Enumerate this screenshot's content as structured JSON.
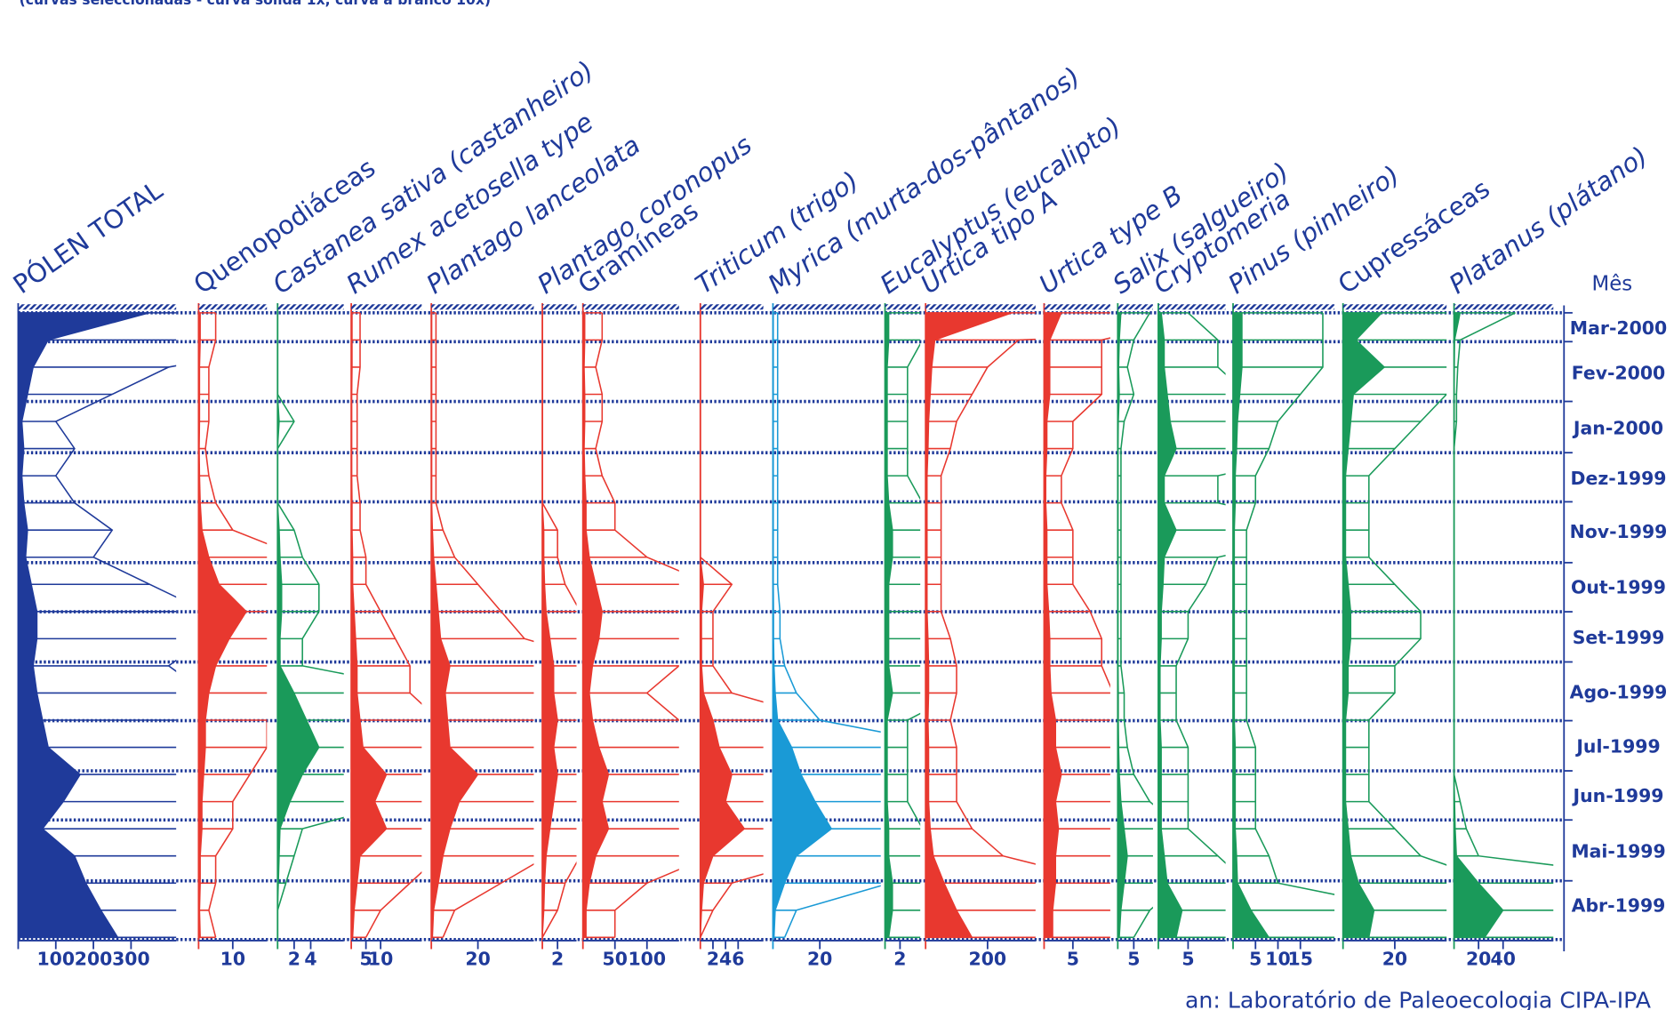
{
  "caption": "(curvas seleccionadas - curva sólida 1x, curva a branco 10x)",
  "footer": "an: Laboratório de Paleoecologia CIPA-IPA",
  "exaggeration": 10,
  "y_axis": {
    "title": "Mês",
    "categories": [
      "Mar-2000",
      "Fev-2000",
      "Jan-2000",
      "Dez-1999",
      "Nov-1999",
      "Out-1999",
      "Set-1999",
      "Ago-1999",
      "Jul-1999",
      "Jun-1999",
      "Mai-1999",
      "Abr-1999"
    ]
  },
  "chart_data": [
    {
      "type": "area",
      "title": "PÓLEN TOTAL",
      "italic": false,
      "color": "#1f3a9a",
      "xlim": [
        0,
        420
      ],
      "xticks": [
        100,
        200,
        300
      ],
      "values": [
        350,
        80,
        40,
        25,
        10,
        15,
        10,
        15,
        25,
        20,
        35,
        50,
        50,
        40,
        50,
        65,
        80,
        165,
        120,
        65,
        150,
        180,
        220,
        265
      ]
    },
    {
      "type": "area",
      "title": "Quenopodiáceas",
      "italic": false,
      "color": "#e8382f",
      "xlim": [
        0,
        20
      ],
      "xticks": [
        10
      ],
      "values": [
        0.5,
        0.5,
        0.3,
        0.3,
        0.3,
        0.2,
        0.3,
        0.5,
        1,
        3,
        6,
        14,
        9,
        5,
        3,
        2,
        2,
        1.5,
        1,
        1,
        0.5,
        0.5,
        0.3,
        0.5
      ]
    },
    {
      "type": "area",
      "title": "Castanea sativa (castanheiro)",
      "italic": true,
      "color": "#1a9a5a",
      "xlim": [
        0,
        8
      ],
      "xticks": [
        2,
        4
      ],
      "values": [
        0,
        0,
        0,
        0,
        0.2,
        0,
        0,
        0,
        0.2,
        0.3,
        0.5,
        0.5,
        0.3,
        0.3,
        2,
        3.5,
        5,
        3,
        1.5,
        0.3,
        0.2,
        0.1,
        0,
        0
      ]
    },
    {
      "type": "area",
      "title": "Rumex acetosella type",
      "italic": true,
      "color": "#e8382f",
      "xlim": [
        0,
        24
      ],
      "xticks": [
        5,
        10
      ],
      "values": [
        0.3,
        0.3,
        0.3,
        0.2,
        0.2,
        0.2,
        0.2,
        0.3,
        0.3,
        0.5,
        0.5,
        1,
        1.5,
        2,
        2,
        3,
        4,
        12,
        8,
        12,
        3,
        2,
        1,
        0.5
      ]
    },
    {
      "type": "area",
      "title": "Plantago lanceolata",
      "italic": true,
      "color": "#e8382f",
      "xlim": [
        0,
        44
      ],
      "xticks": [
        20
      ],
      "values": [
        0.2,
        0.2,
        0.2,
        0.2,
        0.2,
        0.2,
        0.2,
        0.2,
        0.5,
        1,
        2,
        3,
        4,
        8,
        6,
        7,
        8,
        20,
        12,
        8,
        5,
        3,
        1,
        0.5
      ]
    },
    {
      "type": "area",
      "title": "Plantago coronopus",
      "italic": true,
      "color": "#e8382f",
      "xlim": [
        0,
        4.5
      ],
      "xticks": [
        2
      ],
      "values": [
        0,
        0,
        0,
        0,
        0,
        0,
        0,
        0,
        0.2,
        0.2,
        0.3,
        0.5,
        1,
        1.5,
        1.5,
        2,
        1.5,
        2,
        1.5,
        1,
        0.5,
        0.3,
        0.2,
        0
      ]
    },
    {
      "type": "area",
      "title": "Gramíneas",
      "italic": false,
      "color": "#e8382f",
      "xlim": [
        0,
        150
      ],
      "xticks": [
        50,
        100
      ],
      "values": [
        3,
        3,
        2,
        3,
        3,
        2,
        3,
        5,
        5,
        10,
        20,
        30,
        25,
        15,
        10,
        15,
        25,
        40,
        30,
        40,
        20,
        10,
        5,
        5
      ]
    },
    {
      "type": "area",
      "title": "Triticum (trigo)",
      "italic": true,
      "color": "#e8382f",
      "xlim": [
        0,
        10
      ],
      "xticks": [
        2,
        4,
        6
      ],
      "values": [
        0,
        0,
        0,
        0,
        0,
        0,
        0,
        0,
        0,
        0,
        0.5,
        0.2,
        0.2,
        0.2,
        0.5,
        2,
        3,
        5,
        4,
        7,
        2,
        0.5,
        0.2,
        0
      ]
    },
    {
      "type": "area",
      "title": "Myrica (murta-dos-pântanos)",
      "italic": true,
      "color": "#1a9ad6",
      "xlim": [
        0,
        46
      ],
      "xticks": [
        20
      ],
      "values": [
        0.2,
        0.2,
        0.2,
        0.2,
        0.2,
        0.2,
        0.2,
        0.2,
        0.2,
        0.2,
        0.2,
        0.3,
        0.3,
        0.5,
        1,
        2,
        8,
        12,
        18,
        25,
        10,
        5,
        1,
        0.5
      ]
    },
    {
      "type": "area",
      "title": "Eucalyptus (eucalipto)",
      "italic": true,
      "color": "#1a9a5a",
      "xlim": [
        0,
        4.7
      ],
      "xticks": [
        2
      ],
      "values": [
        0.5,
        0.5,
        0.3,
        0.3,
        0.3,
        0.3,
        0.3,
        0.5,
        1,
        1,
        0.5,
        0.5,
        0.5,
        0.5,
        1,
        0.3,
        0.3,
        0.3,
        0.3,
        0.5,
        0.5,
        1,
        1,
        0.5
      ]
    },
    {
      "type": "area",
      "title": "Urtica tipo A",
      "italic": true,
      "color": "#e8382f",
      "xlim": [
        0,
        355
      ],
      "xticks": [
        200
      ],
      "values": [
        280,
        30,
        20,
        15,
        10,
        8,
        5,
        5,
        5,
        5,
        5,
        5,
        8,
        10,
        10,
        8,
        10,
        10,
        10,
        15,
        25,
        60,
        100,
        150
      ]
    },
    {
      "type": "area",
      "title": "Urtica type B",
      "italic": true,
      "color": "#e8382f",
      "xlim": [
        0,
        11.5
      ],
      "xticks": [
        5
      ],
      "values": [
        3,
        1,
        1,
        1,
        0.5,
        0.5,
        0.3,
        0.3,
        0.5,
        0.5,
        0.5,
        0.8,
        1,
        1,
        1.2,
        2,
        2,
        3,
        2,
        2.5,
        2,
        2,
        1.5,
        1.5
      ]
    },
    {
      "type": "area",
      "title": "Salix (salgueiro)",
      "italic": true,
      "color": "#1a9a5a",
      "xlim": [
        0,
        11
      ],
      "xticks": [
        5
      ],
      "values": [
        1,
        0.5,
        0.3,
        0.5,
        0.2,
        0.1,
        0.1,
        0.1,
        0.1,
        0.1,
        0.1,
        0.1,
        0.1,
        0.1,
        0.2,
        0.2,
        0.3,
        0.5,
        1,
        2,
        3,
        2,
        1,
        0.5
      ]
    },
    {
      "type": "area",
      "title": "Cryptomeria",
      "italic": true,
      "color": "#1a9a5a",
      "xlim": [
        0,
        11.3
      ],
      "xticks": [
        5
      ],
      "values": [
        0.5,
        1,
        1,
        1.5,
        2,
        3,
        1,
        1,
        3,
        1,
        0.8,
        0.5,
        0.5,
        0.3,
        0.3,
        0.3,
        0.5,
        0.5,
        0.5,
        0.5,
        1,
        1.5,
        4,
        3
      ]
    },
    {
      "type": "area",
      "title": "Pinus (pinheiro)",
      "italic": true,
      "color": "#1a9a5a",
      "xlim": [
        0,
        22.6
      ],
      "xticks": [
        5,
        10,
        15
      ],
      "values": [
        2,
        2,
        2,
        1.5,
        1,
        0.8,
        0.5,
        0.5,
        0.3,
        0.3,
        0.3,
        0.3,
        0.3,
        0.3,
        0.3,
        0.3,
        0.5,
        0.5,
        0.5,
        0.5,
        0.8,
        1,
        4,
        8
      ]
    },
    {
      "type": "area",
      "title": "Cupressáceas",
      "italic": false,
      "color": "#1a9a5a",
      "xlim": [
        0,
        40
      ],
      "xticks": [
        20
      ],
      "values": [
        15,
        5,
        16,
        4,
        3,
        2,
        1,
        1,
        1,
        1,
        2,
        3,
        3,
        2,
        2,
        1,
        1,
        1,
        1,
        2,
        3,
        6,
        12,
        10
      ]
    },
    {
      "type": "area",
      "title": "Platanus (plátano)",
      "italic": true,
      "color": "#1a9a5a",
      "xlim": [
        0,
        81
      ],
      "xticks": [
        20,
        40
      ],
      "values": [
        5,
        0.5,
        0.3,
        0.2,
        0.2,
        0,
        0,
        0,
        0,
        0,
        0,
        0,
        0,
        0,
        0,
        0,
        0,
        0,
        0.5,
        1,
        2,
        20,
        40,
        25
      ]
    }
  ]
}
